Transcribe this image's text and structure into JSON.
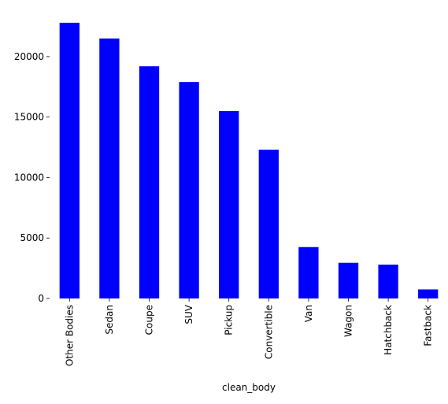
{
  "chart_data": {
    "type": "bar",
    "title": "",
    "xlabel": "clean_body",
    "ylabel": "",
    "categories": [
      "Other Bodies",
      "Sedan",
      "Coupe",
      "SUV",
      "Pickup",
      "Convertible",
      "Van",
      "Wagon",
      "Hatchback",
      "Fastback"
    ],
    "values": [
      22800,
      21500,
      19200,
      17900,
      15500,
      12300,
      4250,
      2950,
      2800,
      750
    ],
    "ylim": [
      0,
      23900
    ],
    "yticks": [
      0,
      5000,
      10000,
      15000,
      20000
    ],
    "grid": false,
    "legend": "none",
    "bar_color": "#0000ff"
  }
}
